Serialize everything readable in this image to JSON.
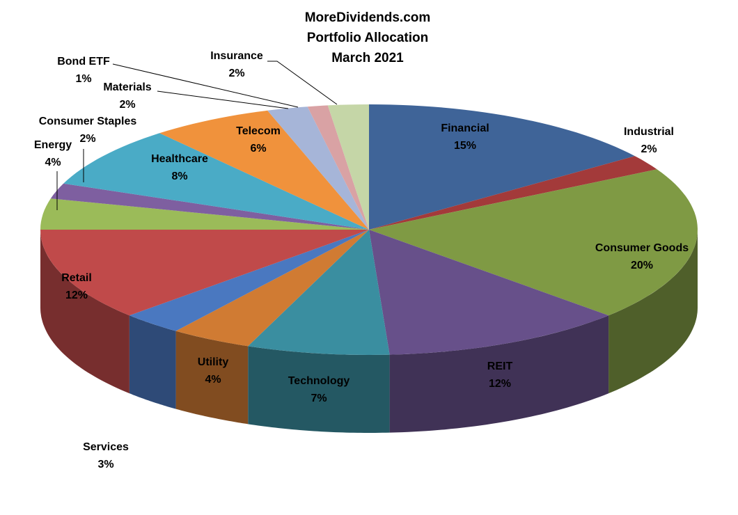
{
  "chart_data": {
    "type": "pie3d",
    "title": [
      "MoreDividends.com",
      "Portfolio Allocation",
      "March 2021"
    ],
    "categories": [
      "Financial",
      "Industrial",
      "Consumer Goods",
      "REIT",
      "Technology",
      "Utility",
      "Services",
      "Retail",
      "Energy",
      "Consumer Staples",
      "Healthcare",
      "Telecom",
      "Materials",
      "Bond ETF",
      "Insurance"
    ],
    "values": [
      15,
      2,
      20,
      12,
      7,
      4,
      3,
      12,
      4,
      2,
      8,
      6,
      2,
      1,
      2
    ],
    "value_labels": [
      "15%",
      "2%",
      "20%",
      "12%",
      "7%",
      "4%",
      "3%",
      "12%",
      "4%",
      "2%",
      "8%",
      "6%",
      "2%",
      "1%",
      "2%"
    ],
    "colors": [
      "#3f6498",
      "#a33a3a",
      "#7f9a44",
      "#67508a",
      "#3a8ea0",
      "#d07b33",
      "#4a78c0",
      "#c04a4a",
      "#9bbb59",
      "#7e5fa0",
      "#4aabc6",
      "#f0923c",
      "#a6b5d8",
      "#d9a2a4",
      "#c5d6a7"
    ]
  }
}
